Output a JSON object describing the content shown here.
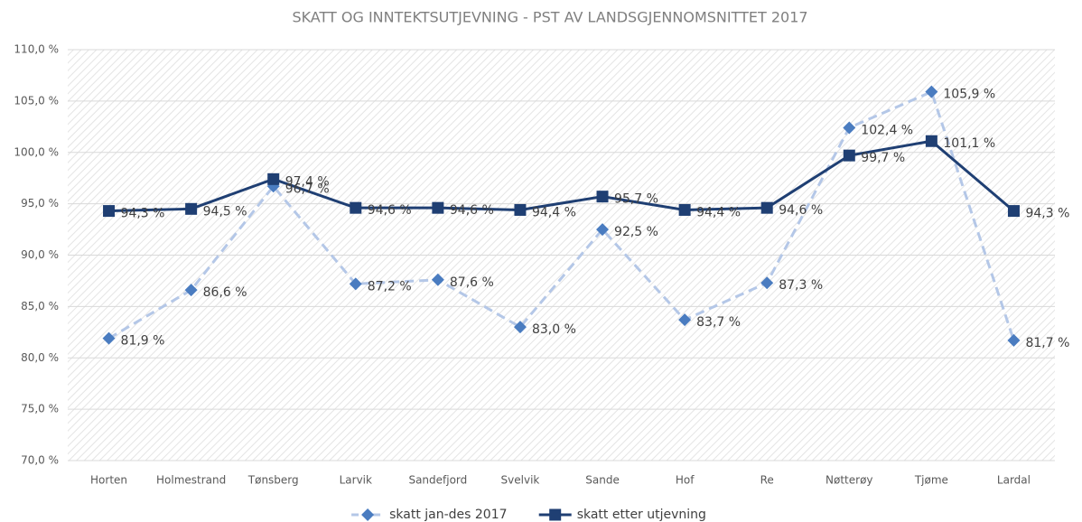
{
  "chart_data": {
    "type": "line",
    "title": "SKATT OG INNTEKTSUTJEVNING - PST AV LANDSGJENNOMSNITTET 2017",
    "categories": [
      "Horten",
      "Holmestrand",
      "Tønsberg",
      "Larvik",
      "Sandefjord",
      "Svelvik",
      "Sande",
      "Hof",
      "Re",
      "Nøtterøy",
      "Tjøme",
      "Lardal"
    ],
    "series": [
      {
        "name": "skatt jan-des 2017",
        "color": "#4a7cc0",
        "line_color": "#b4c7e7",
        "line_style": "dashed",
        "marker": "diamond",
        "values": [
          81.9,
          86.6,
          96.7,
          87.2,
          87.6,
          83.0,
          92.5,
          83.7,
          87.3,
          102.4,
          105.9,
          81.7
        ],
        "value_labels": [
          "81,9 %",
          "86,6 %",
          "96,7 %",
          "87,2 %",
          "87,6 %",
          "83,0 %",
          "92,5 %",
          "83,7 %",
          "87,3 %",
          "102,4 %",
          "105,9 %",
          "81,7 %"
        ]
      },
      {
        "name": "skatt etter utjevning",
        "color": "#1f3f73",
        "line_color": "#1f3f73",
        "line_style": "solid",
        "marker": "square",
        "values": [
          94.3,
          94.5,
          97.4,
          94.6,
          94.6,
          94.4,
          95.7,
          94.4,
          94.6,
          99.7,
          101.1,
          94.3
        ],
        "value_labels": [
          "94,3 %",
          "94,5 %",
          "97,4 %",
          "94,6 %",
          "94,6 %",
          "94,4 %",
          "95,7 %",
          "94,4 %",
          "94,6 %",
          "99,7 %",
          "101,1 %",
          "94,3 %"
        ]
      }
    ],
    "ylim": [
      70,
      110
    ],
    "yticks": [
      {
        "value": 70,
        "label": "70,0 %"
      },
      {
        "value": 75,
        "label": "75,0 %"
      },
      {
        "value": 80,
        "label": "80,0 %"
      },
      {
        "value": 85,
        "label": "85,0 %"
      },
      {
        "value": 90,
        "label": "90,0 %"
      },
      {
        "value": 95,
        "label": "95,0 %"
      },
      {
        "value": 100,
        "label": "100,0 %"
      },
      {
        "value": 105,
        "label": "105,0 %"
      },
      {
        "value": 110,
        "label": "110,0 %"
      }
    ],
    "grid": true,
    "legend": "bottom"
  }
}
